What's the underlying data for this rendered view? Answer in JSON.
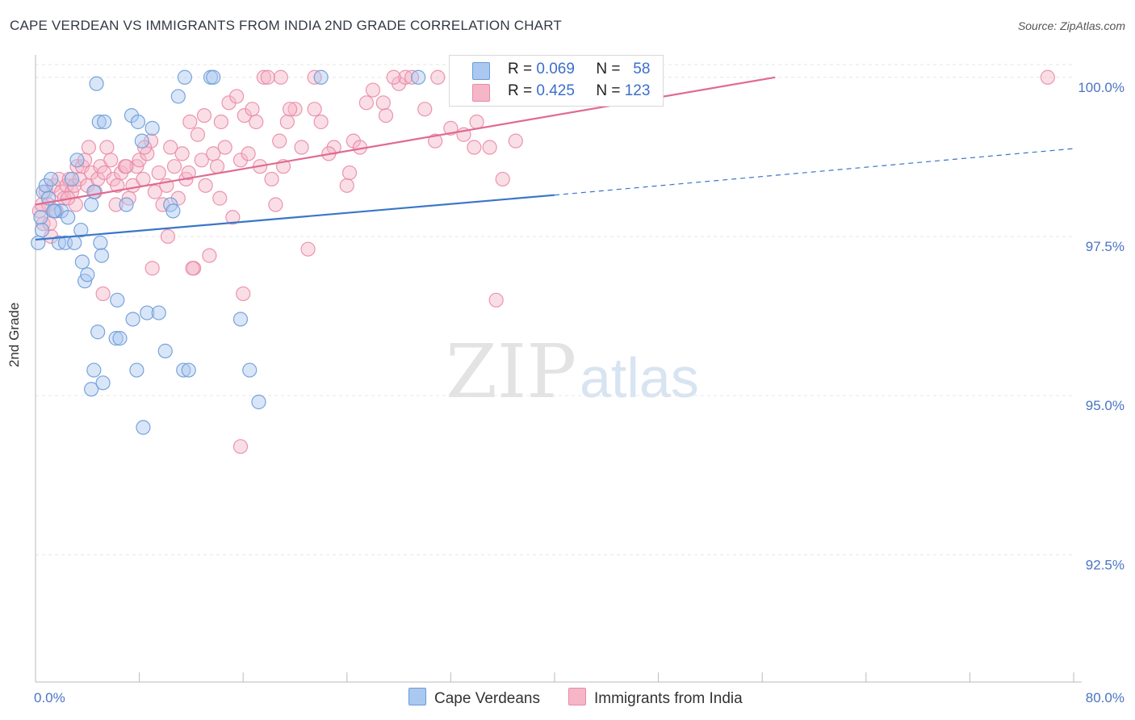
{
  "title": "CAPE VERDEAN VS IMMIGRANTS FROM INDIA 2ND GRADE CORRELATION CHART",
  "source": "Source: ZipAtlas.com",
  "watermark": {
    "zip": "ZIP",
    "atlas": "atlas"
  },
  "colors": {
    "blue_fill": "#aac8f0",
    "blue_stroke": "#6a9bd8",
    "blue_line": "#3a76c8",
    "pink_fill": "#f5b6c8",
    "pink_stroke": "#e98aa8",
    "pink_line": "#e06a93",
    "grid": "#e6e6e6",
    "axis": "#bbbbbb",
    "tick_text": "#4a74c4"
  },
  "legend": [
    {
      "r_label": "R =",
      "r_value": "0.069",
      "n_label": "N =",
      "n_value": "58",
      "color": "#aac8f0"
    },
    {
      "r_label": "R =",
      "r_value": "0.425",
      "n_label": "N =",
      "n_value": "123",
      "color": "#f5b6c8"
    }
  ],
  "chart_data": {
    "type": "scatter",
    "title": "CAPE VERDEAN VS IMMIGRANTS FROM INDIA 2ND GRADE CORRELATION CHART",
    "xlabel": "",
    "ylabel": "2nd Grade",
    "xlim": [
      0,
      80
    ],
    "ylim": [
      90.5,
      100.2
    ],
    "x_tick_labels": [
      "0.0%",
      "80.0%"
    ],
    "y_ticks": [
      92.5,
      95.0,
      97.5,
      100.0
    ],
    "y_tick_labels": [
      "92.5%",
      "95.0%",
      "97.5%",
      "100.0%"
    ],
    "grid": "horizontal dashed",
    "legend_position": "top-center",
    "series": [
      {
        "name": "Cape Verdeans",
        "color": "#aac8f0",
        "trend": {
          "x": [
            0,
            40
          ],
          "y": [
            97.45,
            98.15
          ],
          "dashed_extension_to_x": 80,
          "dashed_extension_y": 98.88
        },
        "points": [
          [
            0.4,
            97.8
          ],
          [
            0.5,
            97.6
          ],
          [
            0.6,
            98.2
          ],
          [
            0.8,
            98.3
          ],
          [
            1.0,
            98.1
          ],
          [
            1.2,
            98.4
          ],
          [
            1.5,
            97.9
          ],
          [
            1.8,
            97.4
          ],
          [
            2.0,
            97.9
          ],
          [
            2.3,
            97.4
          ],
          [
            2.5,
            97.8
          ],
          [
            2.8,
            98.4
          ],
          [
            3.0,
            97.4
          ],
          [
            3.5,
            97.6
          ],
          [
            3.6,
            97.1
          ],
          [
            3.8,
            96.8
          ],
          [
            3.2,
            98.7
          ],
          [
            4.0,
            96.9
          ],
          [
            4.3,
            98.0
          ],
          [
            4.5,
            98.2
          ],
          [
            4.8,
            96.0
          ],
          [
            4.5,
            95.4
          ],
          [
            4.3,
            95.1
          ],
          [
            4.7,
            99.9
          ],
          [
            4.9,
            99.3
          ],
          [
            5.0,
            97.4
          ],
          [
            5.1,
            97.2
          ],
          [
            5.2,
            95.2
          ],
          [
            5.3,
            99.3
          ],
          [
            6.2,
            95.9
          ],
          [
            6.3,
            96.5
          ],
          [
            6.5,
            95.9
          ],
          [
            7.0,
            98.0
          ],
          [
            7.5,
            96.2
          ],
          [
            7.8,
            95.4
          ],
          [
            7.4,
            99.4
          ],
          [
            7.9,
            99.3
          ],
          [
            8.6,
            96.3
          ],
          [
            8.2,
            99.0
          ],
          [
            9.0,
            99.2
          ],
          [
            9.5,
            96.3
          ],
          [
            10.0,
            95.7
          ],
          [
            10.4,
            98.0
          ],
          [
            10.6,
            97.9
          ],
          [
            11.0,
            99.7
          ],
          [
            11.4,
            95.4
          ],
          [
            11.8,
            95.4
          ],
          [
            11.5,
            100.0
          ],
          [
            13.5,
            100.0
          ],
          [
            13.7,
            100.0
          ],
          [
            15.8,
            96.2
          ],
          [
            16.5,
            95.4
          ],
          [
            17.2,
            94.9
          ],
          [
            8.3,
            94.5
          ],
          [
            22.0,
            100.0
          ],
          [
            29.5,
            100.0
          ],
          [
            0.2,
            97.4
          ],
          [
            1.4,
            97.9
          ]
        ]
      },
      {
        "name": "Immigrants from India",
        "color": "#f5b6c8",
        "trend": {
          "x": [
            0,
            57
          ],
          "y": [
            98.0,
            100.0
          ]
        },
        "points": [
          [
            0.3,
            97.9
          ],
          [
            0.6,
            97.7
          ],
          [
            0.8,
            98.2
          ],
          [
            1.0,
            98.0
          ],
          [
            1.2,
            97.5
          ],
          [
            1.4,
            98.3
          ],
          [
            1.6,
            97.9
          ],
          [
            1.8,
            98.4
          ],
          [
            2.0,
            98.2
          ],
          [
            2.2,
            98.1
          ],
          [
            2.4,
            98.3
          ],
          [
            2.6,
            98.4
          ],
          [
            2.8,
            98.2
          ],
          [
            3.0,
            98.3
          ],
          [
            3.2,
            98.6
          ],
          [
            3.4,
            98.4
          ],
          [
            3.6,
            98.6
          ],
          [
            3.8,
            98.7
          ],
          [
            4.0,
            98.3
          ],
          [
            4.3,
            98.5
          ],
          [
            4.6,
            98.2
          ],
          [
            4.8,
            98.4
          ],
          [
            5.0,
            98.6
          ],
          [
            5.3,
            98.5
          ],
          [
            5.5,
            98.9
          ],
          [
            5.8,
            98.7
          ],
          [
            6.0,
            98.4
          ],
          [
            6.3,
            98.3
          ],
          [
            6.6,
            98.5
          ],
          [
            6.9,
            98.6
          ],
          [
            7.2,
            98.1
          ],
          [
            7.5,
            98.3
          ],
          [
            7.8,
            98.6
          ],
          [
            8.0,
            98.7
          ],
          [
            8.3,
            98.4
          ],
          [
            8.6,
            98.8
          ],
          [
            8.9,
            99.0
          ],
          [
            9.2,
            98.2
          ],
          [
            9.5,
            98.5
          ],
          [
            9.8,
            98.0
          ],
          [
            10.1,
            98.3
          ],
          [
            10.4,
            98.9
          ],
          [
            10.7,
            98.6
          ],
          [
            11.0,
            98.1
          ],
          [
            11.3,
            98.8
          ],
          [
            11.6,
            98.4
          ],
          [
            11.9,
            99.3
          ],
          [
            12.2,
            97.0
          ],
          [
            12.5,
            99.1
          ],
          [
            12.8,
            98.7
          ],
          [
            13.1,
            98.3
          ],
          [
            13.4,
            97.2
          ],
          [
            13.7,
            98.8
          ],
          [
            14.0,
            98.6
          ],
          [
            14.3,
            99.3
          ],
          [
            14.6,
            98.9
          ],
          [
            14.9,
            99.6
          ],
          [
            15.2,
            97.8
          ],
          [
            15.5,
            99.7
          ],
          [
            15.8,
            98.7
          ],
          [
            16.1,
            99.4
          ],
          [
            16.4,
            98.8
          ],
          [
            16.7,
            99.5
          ],
          [
            17.0,
            99.3
          ],
          [
            17.3,
            98.6
          ],
          [
            17.6,
            100.0
          ],
          [
            17.9,
            100.0
          ],
          [
            18.2,
            98.4
          ],
          [
            18.5,
            98.0
          ],
          [
            18.8,
            99.0
          ],
          [
            19.1,
            98.6
          ],
          [
            19.4,
            99.3
          ],
          [
            20.0,
            99.5
          ],
          [
            20.5,
            98.9
          ],
          [
            21.0,
            97.3
          ],
          [
            21.5,
            99.5
          ],
          [
            22.0,
            99.3
          ],
          [
            23.0,
            98.9
          ],
          [
            24.0,
            98.3
          ],
          [
            24.5,
            99.0
          ],
          [
            25.0,
            98.9
          ],
          [
            25.5,
            99.6
          ],
          [
            26.0,
            99.8
          ],
          [
            27.0,
            99.4
          ],
          [
            28.0,
            99.9
          ],
          [
            28.5,
            100.0
          ],
          [
            29.0,
            100.0
          ],
          [
            30.0,
            99.5
          ],
          [
            31.0,
            100.0
          ],
          [
            32.0,
            99.2
          ],
          [
            33.0,
            99.1
          ],
          [
            34.0,
            99.3
          ],
          [
            35.0,
            98.9
          ],
          [
            35.5,
            96.5
          ],
          [
            36.0,
            98.4
          ],
          [
            37.0,
            99.0
          ],
          [
            78.0,
            100.0
          ],
          [
            9.0,
            97.0
          ],
          [
            5.2,
            96.6
          ],
          [
            16.0,
            96.6
          ],
          [
            10.2,
            97.5
          ],
          [
            15.8,
            94.2
          ],
          [
            12.1,
            97.0
          ],
          [
            21.5,
            100.0
          ],
          [
            7.0,
            98.6
          ],
          [
            6.2,
            98.0
          ],
          [
            3.1,
            98.0
          ],
          [
            4.1,
            98.9
          ],
          [
            2.5,
            98.1
          ],
          [
            1.1,
            97.7
          ],
          [
            0.5,
            98.0
          ],
          [
            19.6,
            99.5
          ],
          [
            13.0,
            99.4
          ],
          [
            24.2,
            98.5
          ],
          [
            26.8,
            99.6
          ],
          [
            22.6,
            98.8
          ],
          [
            18.9,
            100.0
          ],
          [
            11.8,
            98.5
          ],
          [
            8.4,
            98.9
          ],
          [
            14.2,
            98.1
          ],
          [
            30.8,
            99.0
          ],
          [
            33.8,
            98.9
          ],
          [
            27.6,
            100.0
          ]
        ]
      }
    ]
  }
}
